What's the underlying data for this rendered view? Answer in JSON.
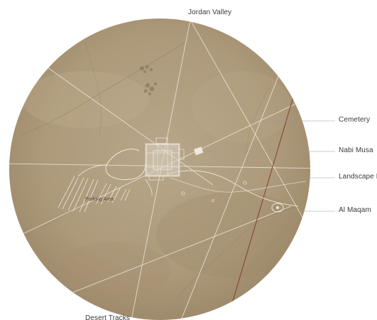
{
  "labels": {
    "jordan_valley": "Jordan Valley",
    "cemetery": "Cemetery",
    "nabi_musa": "Nabi Musa",
    "landscape_path": "Landscape P",
    "al_maqam": "Al Maqam",
    "parking_area": "Parking Area",
    "desert_tracks": "Desert Tracks"
  },
  "colors": {
    "terrain": "#b3a183",
    "terrain_dark": "#8f7d61",
    "path_light": "#efe9dd",
    "track_red": "#7d3a2a",
    "leader_line": "#9a9a9a"
  }
}
